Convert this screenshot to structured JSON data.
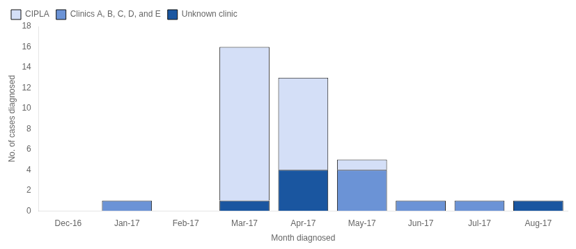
{
  "chart_data": {
    "type": "bar",
    "stacked": true,
    "categories": [
      "Dec-16",
      "Jan-17",
      "Feb-17",
      "Mar-17",
      "Apr-17",
      "May-17",
      "Jun-17",
      "Jul-17",
      "Aug-17"
    ],
    "series": [
      {
        "name": "Unknown clinic",
        "color": "#1a56a0",
        "values": [
          0,
          0,
          0,
          1,
          4,
          0,
          0,
          0,
          1
        ]
      },
      {
        "name": "Clinics A, B, C, D, and E",
        "color": "#6b93d6",
        "values": [
          0,
          1,
          0,
          0,
          0,
          4,
          1,
          1,
          0
        ]
      },
      {
        "name": "CIPLA",
        "color": "#d4dff7",
        "values": [
          0,
          0,
          0,
          15,
          9,
          1,
          0,
          0,
          0
        ]
      }
    ],
    "xlabel": "Month diagnosed",
    "ylabel": "No. of cases diagnosed",
    "ylim": [
      0,
      18
    ],
    "yticks": [
      0,
      2,
      4,
      6,
      8,
      10,
      12,
      14,
      16,
      18
    ],
    "grid": false,
    "legend": "upper left"
  }
}
